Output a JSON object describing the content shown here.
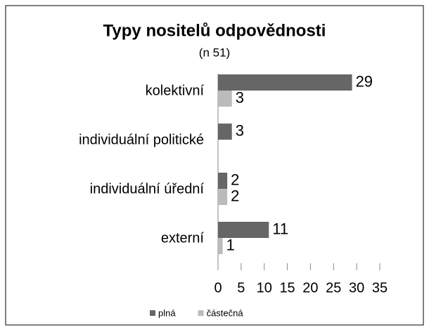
{
  "chart_data": {
    "type": "hbar",
    "title": "Typy nositelů odpovědnosti",
    "subtitle": "(n 51)",
    "categories": [
      "kolektivní",
      "individuální politické",
      "individuální úřední",
      "externí"
    ],
    "series": [
      {
        "name": "plná",
        "color": "#666666",
        "values": [
          29,
          3,
          2,
          11
        ]
      },
      {
        "name": "částečná",
        "color": "#bbbbbb",
        "values": [
          3,
          null,
          2,
          1
        ]
      }
    ],
    "xlim": [
      0,
      35
    ],
    "xticks": [
      0,
      5,
      10,
      15,
      20,
      25,
      30,
      35
    ],
    "legend": "bottom"
  }
}
